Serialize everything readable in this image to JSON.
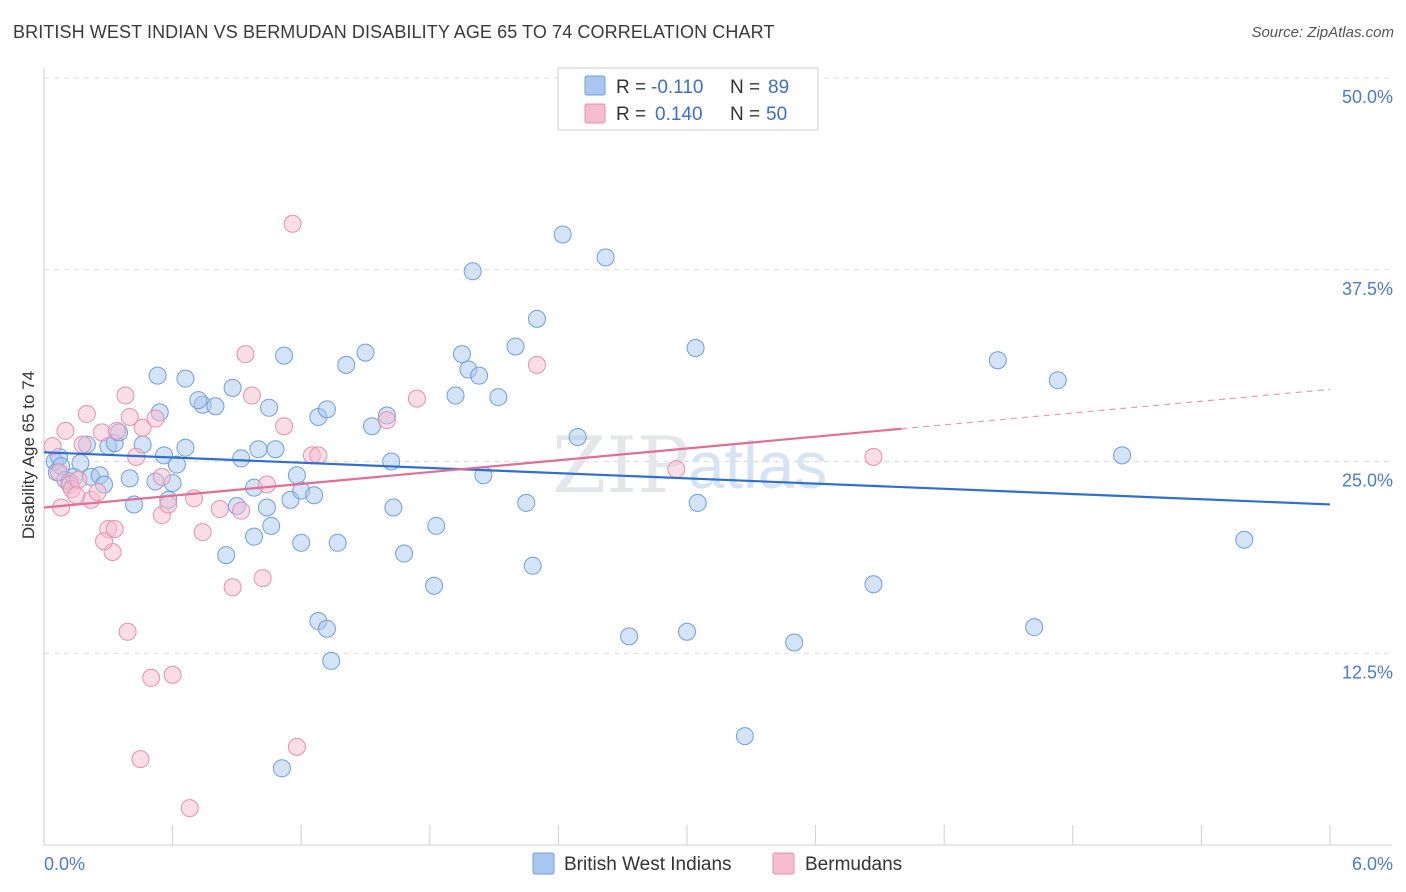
{
  "header": {
    "title": "BRITISH WEST INDIAN VS BERMUDAN DISABILITY AGE 65 TO 74 CORRELATION CHART",
    "source": "Source: ZipAtlas.com"
  },
  "watermark": {
    "zip": "ZIP",
    "atlas": "atlas"
  },
  "legend": {
    "rows": [
      {
        "r_label": "R =",
        "r_value": "-0.110",
        "n_label": "N =",
        "n_value": "89"
      },
      {
        "r_label": "R =",
        "r_value": "0.140",
        "n_label": "N =",
        "n_value": "50"
      }
    ]
  },
  "colors": {
    "blue_fill": "#a9c7ee",
    "blue_stroke": "#6f9fdc",
    "blue_line": "#2f6fcf",
    "pink_fill": "#f6bdd0",
    "pink_stroke": "#e88fae",
    "pink_line": "#e06e96",
    "tick_text": "#4a7cc9",
    "grid": "#dcdcdc"
  },
  "chart_data": {
    "type": "scatter",
    "title": "BRITISH WEST INDIAN VS BERMUDAN DISABILITY AGE 65 TO 74 CORRELATION CHART",
    "xlabel": "",
    "ylabel": "Disability Age 65 to 74",
    "xlim": [
      0,
      6.0
    ],
    "ylim": [
      0,
      50.0
    ],
    "x_tick_labels": [
      "0.0%",
      "6.0%"
    ],
    "y_ticks": [
      12.5,
      25.0,
      37.5,
      50.0
    ],
    "y_tick_labels": [
      "12.5%",
      "25.0%",
      "37.5%",
      "50.0%"
    ],
    "grid": true,
    "legend_position": "bottom",
    "series": [
      {
        "name": "British West Indians",
        "color": "#a9c7ee",
        "trend": {
          "x": [
            0.0,
            6.0
          ],
          "y": [
            25.6,
            22.2
          ],
          "dashed_from": null
        },
        "points": [
          [
            0.05,
            25.0
          ],
          [
            0.06,
            24.3
          ],
          [
            0.07,
            25.3
          ],
          [
            0.08,
            24.7
          ],
          [
            0.1,
            23.8
          ],
          [
            0.12,
            23.7
          ],
          [
            0.14,
            24.0
          ],
          [
            0.17,
            24.9
          ],
          [
            0.2,
            26.1
          ],
          [
            0.22,
            24.0
          ],
          [
            0.26,
            24.1
          ],
          [
            0.28,
            23.5
          ],
          [
            0.3,
            26.0
          ],
          [
            0.33,
            26.2
          ],
          [
            0.35,
            26.9
          ],
          [
            0.4,
            23.9
          ],
          [
            0.42,
            22.2
          ],
          [
            0.46,
            26.1
          ],
          [
            0.52,
            23.7
          ],
          [
            0.56,
            25.4
          ],
          [
            0.54,
            28.2
          ],
          [
            0.66,
            25.9
          ],
          [
            0.74,
            28.7
          ],
          [
            0.72,
            29.0
          ],
          [
            0.8,
            28.6
          ],
          [
            0.62,
            24.8
          ],
          [
            0.88,
            29.8
          ],
          [
            0.92,
            25.2
          ],
          [
            0.98,
            23.3
          ],
          [
            1.0,
            25.8
          ],
          [
            1.05,
            28.5
          ],
          [
            1.08,
            25.8
          ],
          [
            0.53,
            30.6
          ],
          [
            0.66,
            30.4
          ],
          [
            0.58,
            22.5
          ],
          [
            0.9,
            22.1
          ],
          [
            1.04,
            22.0
          ],
          [
            1.12,
            31.9
          ],
          [
            1.15,
            22.5
          ],
          [
            1.2,
            23.1
          ],
          [
            1.28,
            27.9
          ],
          [
            1.32,
            28.4
          ],
          [
            1.26,
            22.8
          ],
          [
            1.41,
            31.3
          ],
          [
            1.5,
            32.1
          ],
          [
            1.53,
            27.3
          ],
          [
            1.6,
            28.0
          ],
          [
            1.62,
            25.0
          ],
          [
            1.63,
            22.0
          ],
          [
            1.68,
            19.0
          ],
          [
            1.83,
            20.8
          ],
          [
            1.92,
            29.3
          ],
          [
            1.98,
            31.0
          ],
          [
            2.03,
            30.6
          ],
          [
            2.05,
            24.1
          ],
          [
            2.12,
            29.2
          ],
          [
            2.2,
            32.5
          ],
          [
            2.25,
            22.3
          ],
          [
            2.3,
            34.3
          ],
          [
            2.42,
            39.8
          ],
          [
            2.49,
            26.6
          ],
          [
            2.62,
            38.3
          ],
          [
            2.0,
            37.4
          ],
          [
            2.28,
            18.2
          ],
          [
            1.37,
            19.7
          ],
          [
            1.2,
            19.7
          ],
          [
            1.06,
            20.8
          ],
          [
            0.85,
            18.9
          ],
          [
            0.98,
            20.1
          ],
          [
            1.28,
            14.6
          ],
          [
            1.32,
            14.1
          ],
          [
            1.34,
            12.0
          ],
          [
            1.18,
            24.1
          ],
          [
            1.95,
            32.0
          ],
          [
            2.73,
            13.6
          ],
          [
            3.27,
            7.1
          ],
          [
            3.04,
            32.4
          ],
          [
            3.0,
            13.9
          ],
          [
            3.5,
            13.2
          ],
          [
            3.87,
            17.0
          ],
          [
            3.05,
            22.3
          ],
          [
            4.45,
            31.6
          ],
          [
            4.73,
            30.3
          ],
          [
            5.03,
            25.4
          ],
          [
            4.62,
            14.2
          ],
          [
            5.6,
            19.9
          ],
          [
            1.11,
            5.0
          ],
          [
            1.82,
            16.9
          ],
          [
            0.6,
            23.6
          ]
        ]
      },
      {
        "name": "Bermudans",
        "color": "#f6bdd0",
        "trend": {
          "x": [
            0.0,
            6.0
          ],
          "y": [
            22.0,
            29.7
          ],
          "dashed_from": 4.0
        },
        "points": [
          [
            0.04,
            26.0
          ],
          [
            0.07,
            24.3
          ],
          [
            0.08,
            22.0
          ],
          [
            0.1,
            27.0
          ],
          [
            0.12,
            23.5
          ],
          [
            0.13,
            23.2
          ],
          [
            0.16,
            23.8
          ],
          [
            0.18,
            26.1
          ],
          [
            0.2,
            28.1
          ],
          [
            0.22,
            22.5
          ],
          [
            0.25,
            23.0
          ],
          [
            0.27,
            26.9
          ],
          [
            0.3,
            20.6
          ],
          [
            0.32,
            19.1
          ],
          [
            0.34,
            27.0
          ],
          [
            0.38,
            29.3
          ],
          [
            0.4,
            27.9
          ],
          [
            0.43,
            25.3
          ],
          [
            0.46,
            27.2
          ],
          [
            0.52,
            27.8
          ],
          [
            0.55,
            21.5
          ],
          [
            0.58,
            22.2
          ],
          [
            0.7,
            22.6
          ],
          [
            0.74,
            20.4
          ],
          [
            0.82,
            21.9
          ],
          [
            0.88,
            16.8
          ],
          [
            0.92,
            21.8
          ],
          [
            0.94,
            32.0
          ],
          [
            0.97,
            29.3
          ],
          [
            1.02,
            17.4
          ],
          [
            1.04,
            23.5
          ],
          [
            1.12,
            27.3
          ],
          [
            1.16,
            40.5
          ],
          [
            1.25,
            25.4
          ],
          [
            1.28,
            25.4
          ],
          [
            1.6,
            27.7
          ],
          [
            1.74,
            29.1
          ],
          [
            2.3,
            31.3
          ],
          [
            2.95,
            24.5
          ],
          [
            3.87,
            25.3
          ],
          [
            0.39,
            13.9
          ],
          [
            0.5,
            10.9
          ],
          [
            0.6,
            11.1
          ],
          [
            0.45,
            5.6
          ],
          [
            1.18,
            6.4
          ],
          [
            0.68,
            2.4
          ],
          [
            0.33,
            20.6
          ],
          [
            0.28,
            19.8
          ],
          [
            0.15,
            22.8
          ],
          [
            0.55,
            24.0
          ]
        ]
      }
    ]
  },
  "bottom_legend": {
    "items": [
      {
        "label": "British West Indians"
      },
      {
        "label": "Bermudans"
      }
    ]
  }
}
